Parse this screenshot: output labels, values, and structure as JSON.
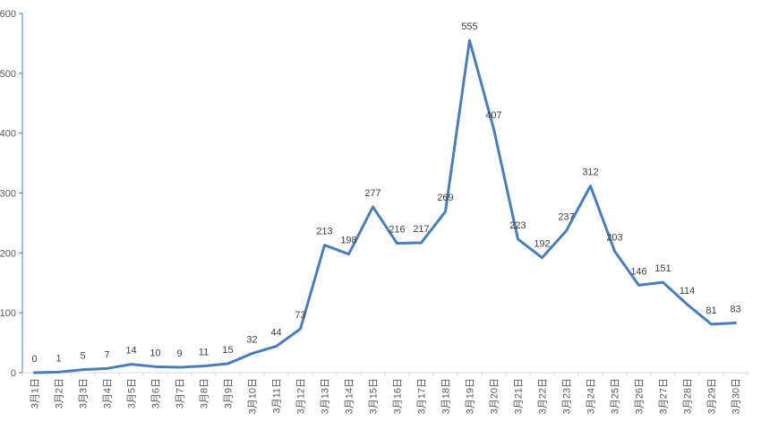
{
  "chart_data": {
    "type": "line",
    "title": "",
    "xlabel": "",
    "ylabel": "",
    "ylim": [
      0,
      600
    ],
    "yticks": [
      0,
      100,
      200,
      300,
      400,
      500,
      600
    ],
    "grid": false,
    "legend": "none",
    "categories": [
      "3月1日",
      "3月2日",
      "3月3日",
      "3月4日",
      "3月5日",
      "3月6日",
      "3月7日",
      "3月8日",
      "3月9日",
      "3月10日",
      "3月11日",
      "3月12日",
      "3月13日",
      "3月14日",
      "3月15日",
      "3月16日",
      "3月17日",
      "3月18日",
      "3月19日",
      "3月20日",
      "3月21日",
      "3月22日",
      "3月23日",
      "3月24日",
      "3月25日",
      "3月26日",
      "3月27日",
      "3月28日",
      "3月29日",
      "3月30日"
    ],
    "series": [
      {
        "values": [
          0,
          1,
          5,
          7,
          14,
          10,
          9,
          11,
          15,
          32,
          44,
          73,
          213,
          198,
          277,
          216,
          217,
          269,
          555,
          407,
          223,
          192,
          237,
          312,
          203,
          146,
          151,
          114,
          81,
          83
        ],
        "color": "#4a7ebb",
        "data_labels": true
      }
    ]
  }
}
